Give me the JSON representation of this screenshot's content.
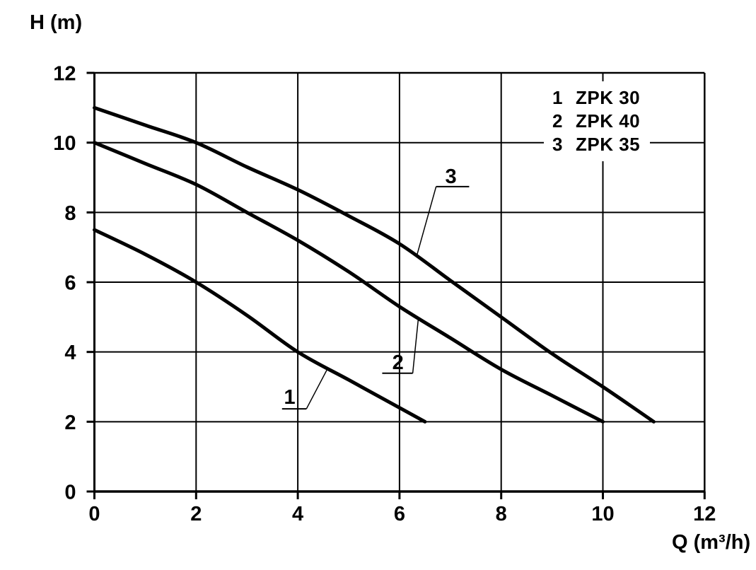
{
  "colors": {
    "ink": "#000000",
    "background": "#ffffff"
  },
  "chart_data": {
    "type": "line",
    "title": "",
    "xlabel": "Q (m³/h)",
    "ylabel": "H (m)",
    "xlim": [
      0,
      12
    ],
    "ylim": [
      0,
      12
    ],
    "x_ticks": [
      0,
      2,
      4,
      6,
      8,
      10,
      12
    ],
    "y_ticks": [
      0,
      2,
      4,
      6,
      8,
      10,
      12
    ],
    "grid": true,
    "legend_position": "top-right",
    "series": [
      {
        "index": "1",
        "name": "ZPK 30",
        "points": [
          [
            0,
            7.5
          ],
          [
            1,
            6.8
          ],
          [
            2,
            6.0
          ],
          [
            3,
            5.05
          ],
          [
            4,
            4.0
          ],
          [
            5,
            3.2
          ],
          [
            6,
            2.4
          ],
          [
            6.5,
            2.0
          ]
        ]
      },
      {
        "index": "2",
        "name": "ZPK 40",
        "points": [
          [
            0,
            10.0
          ],
          [
            1,
            9.4
          ],
          [
            2,
            8.8
          ],
          [
            3,
            8.0
          ],
          [
            4,
            7.2
          ],
          [
            5,
            6.3
          ],
          [
            6,
            5.3
          ],
          [
            7,
            4.4
          ],
          [
            8,
            3.5
          ],
          [
            9,
            2.75
          ],
          [
            10,
            2.0
          ]
        ]
      },
      {
        "index": "3",
        "name": "ZPK 35",
        "points": [
          [
            0,
            11.0
          ],
          [
            1,
            10.5
          ],
          [
            2,
            10.0
          ],
          [
            3,
            9.3
          ],
          [
            4,
            8.65
          ],
          [
            5,
            7.9
          ],
          [
            6,
            7.1
          ],
          [
            7,
            6.05
          ],
          [
            8,
            5.0
          ],
          [
            9,
            3.95
          ],
          [
            10,
            3.0
          ],
          [
            11,
            2.0
          ]
        ]
      }
    ],
    "annotations": [
      {
        "text": "1",
        "tq": 3.84,
        "th": 2.72,
        "u1q": 3.69,
        "u2q": 4.17,
        "uh": 2.37,
        "pq": 4.57,
        "ph": 3.48,
        "from": "right"
      },
      {
        "text": "2",
        "tq": 5.97,
        "th": 3.71,
        "u1q": 5.66,
        "u2q": 6.26,
        "uh": 3.39,
        "pq": 6.37,
        "ph": 4.95,
        "from": "right"
      },
      {
        "text": "3",
        "tq": 7.01,
        "th": 9.04,
        "u1q": 6.72,
        "u2q": 7.37,
        "uh": 8.74,
        "pq": 6.34,
        "ph": 6.76,
        "from": "left"
      }
    ]
  }
}
